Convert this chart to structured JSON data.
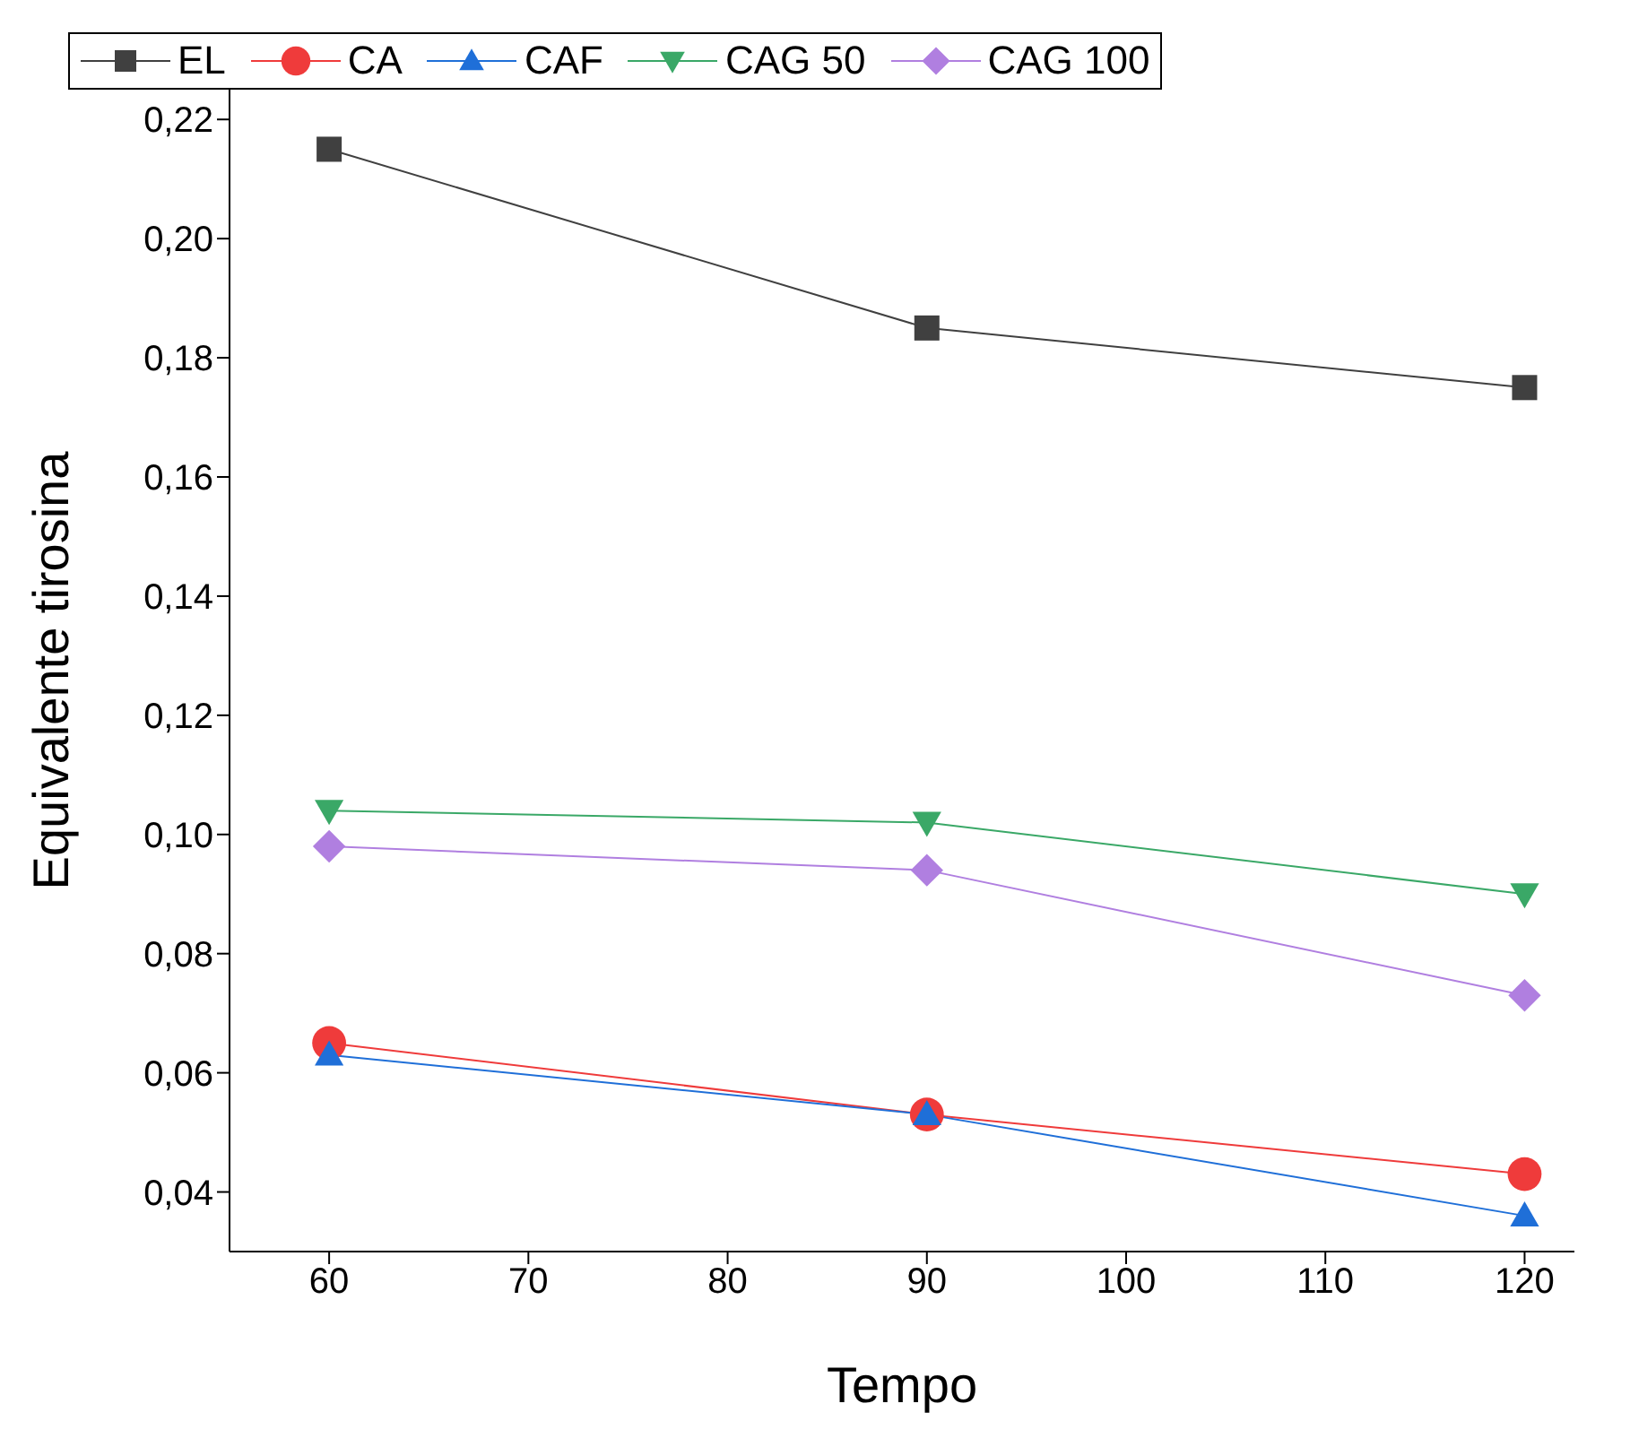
{
  "chart_data": {
    "type": "line",
    "xlabel": "Tempo",
    "ylabel": "Equivalente tirosina",
    "x": [
      60,
      90,
      120
    ],
    "series": [
      {
        "name": "EL",
        "color": "#404040",
        "marker": "square",
        "values": [
          0.215,
          0.185,
          0.175
        ]
      },
      {
        "name": "CA",
        "color": "#ef3b3b",
        "marker": "circle",
        "values": [
          0.065,
          0.053,
          0.043
        ]
      },
      {
        "name": "CAF",
        "color": "#1f6fd8",
        "marker": "triangle",
        "values": [
          0.063,
          0.053,
          0.036
        ]
      },
      {
        "name": "CAG 50",
        "color": "#3aa867",
        "marker": "triangle-down",
        "values": [
          0.104,
          0.102,
          0.09
        ]
      },
      {
        "name": "CAG 100",
        "color": "#b07fe0",
        "marker": "diamond",
        "values": [
          0.098,
          0.094,
          0.073
        ]
      }
    ],
    "xlim": [
      55,
      122.5
    ],
    "xticks": [
      60,
      70,
      80,
      90,
      100,
      110,
      120
    ],
    "ylim": [
      0.03,
      0.225
    ],
    "yticks": [
      {
        "value": 0.04,
        "label": "0,04"
      },
      {
        "value": 0.06,
        "label": "0,06"
      },
      {
        "value": 0.08,
        "label": "0,08"
      },
      {
        "value": 0.1,
        "label": "0,10"
      },
      {
        "value": 0.12,
        "label": "0,12"
      },
      {
        "value": 0.14,
        "label": "0,14"
      },
      {
        "value": 0.16,
        "label": "0,16"
      },
      {
        "value": 0.18,
        "label": "0,18"
      },
      {
        "value": 0.2,
        "label": "0,20"
      },
      {
        "value": 0.22,
        "label": "0,22"
      }
    ],
    "grid": false,
    "legend": "top",
    "line_style": "solid"
  }
}
